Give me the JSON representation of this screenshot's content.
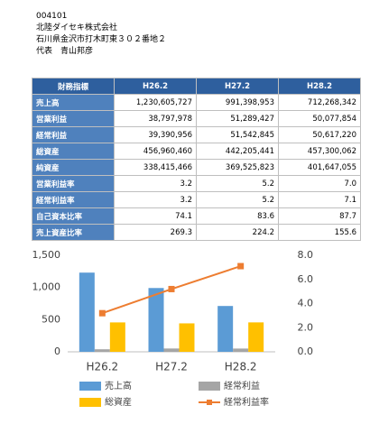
{
  "header": {
    "code": "004101",
    "company": "北陸ダイセキ株式会社",
    "address": "石川県金沢市打木町東３０２番地２",
    "representative_label": "代表",
    "representative": "青山邦彦"
  },
  "table": {
    "columns": [
      "財務指標",
      "H26.2",
      "H27.2",
      "H28.2"
    ],
    "rows": [
      [
        "売上高",
        "1,230,605,727",
        "991,398,953",
        "712,268,342"
      ],
      [
        "営業利益",
        "38,797,978",
        "51,289,427",
        "50,077,854"
      ],
      [
        "経常利益",
        "39,390,956",
        "51,542,845",
        "50,617,220"
      ],
      [
        "総資産",
        "456,960,460",
        "442,205,441",
        "457,300,062"
      ],
      [
        "純資産",
        "338,415,466",
        "369,525,823",
        "401,647,055"
      ],
      [
        "営業利益率",
        "3.2",
        "5.2",
        "7.0"
      ],
      [
        "経常利益率",
        "3.2",
        "5.2",
        "7.1"
      ],
      [
        "自己資本比率",
        "74.1",
        "83.6",
        "87.7"
      ],
      [
        "売上資産比率",
        "269.3",
        "224.2",
        "155.6"
      ]
    ]
  },
  "chart_data": {
    "type": "bar",
    "categories": [
      "H26.2",
      "H27.2",
      "H28.2"
    ],
    "series": [
      {
        "name": "売上高",
        "color": "#5b9bd5",
        "values": [
          1230.6,
          991.4,
          712.3
        ]
      },
      {
        "name": "経常利益",
        "color": "#a5a5a5",
        "values": [
          39.4,
          51.5,
          50.6
        ]
      },
      {
        "name": "総資産",
        "color": "#ffc000",
        "values": [
          457.0,
          442.2,
          457.3
        ]
      },
      {
        "name": "経常利益率",
        "color": "#ed7d31",
        "type": "line",
        "axis": "y2",
        "values": [
          3.2,
          5.2,
          7.1
        ]
      }
    ],
    "ylim": [
      0,
      1500
    ],
    "yticks": [
      0,
      500,
      {
        "value": 1000,
        "label": "1,000"
      },
      {
        "value": 1500,
        "label": "1,500"
      }
    ],
    "y2lim": [
      0,
      8
    ],
    "y2ticks": [
      {
        "value": 0,
        "label": "0.0"
      },
      {
        "value": 2,
        "label": "2.0"
      },
      {
        "value": 4,
        "label": "4.0"
      },
      {
        "value": 6,
        "label": "6.0"
      },
      {
        "value": 8,
        "label": "8.0"
      }
    ],
    "grid": false
  }
}
